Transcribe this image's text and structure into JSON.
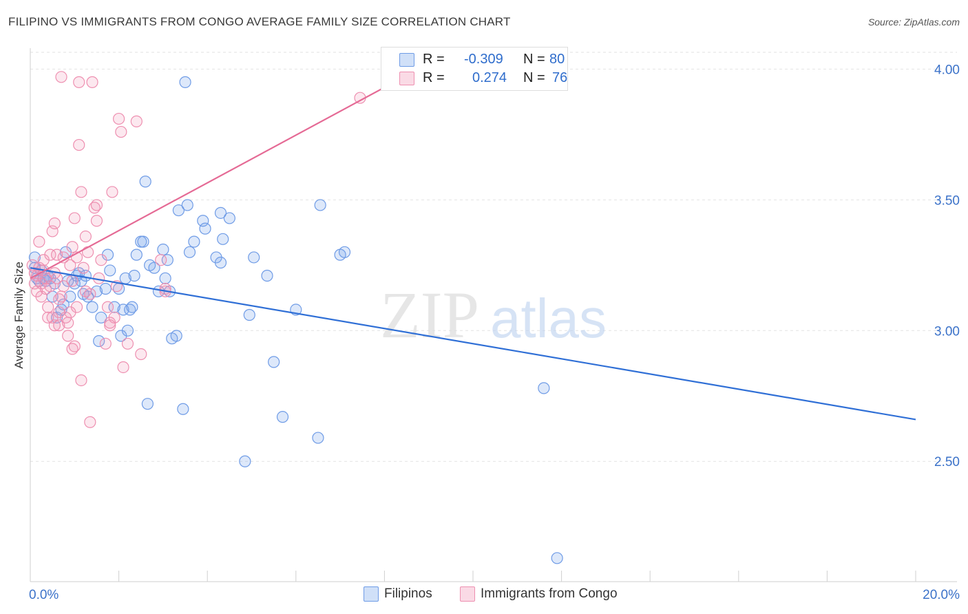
{
  "title": "FILIPINO VS IMMIGRANTS FROM CONGO AVERAGE FAMILY SIZE CORRELATION CHART",
  "source": "Source: ZipAtlas.com",
  "watermark": {
    "zip": "ZIP",
    "atlas": "atlas"
  },
  "colors": {
    "blue_fill": "rgba(120,165,235,0.25)",
    "blue_stroke": "#6e9be6",
    "blue_line": "#2f6fd6",
    "pink_fill": "rgba(240,150,180,0.22)",
    "pink_stroke": "#ee8fb0",
    "pink_line": "#e56a95",
    "axis_label": "#3b72c9",
    "grid": "#e2e2e2"
  },
  "legend": {
    "rows": [
      {
        "r_label": "R = ",
        "r_value": "-0.309",
        "n_label": "N = ",
        "n_value": "80"
      },
      {
        "r_label": "R = ",
        "r_value": "0.274",
        "n_label": "N = ",
        "n_value": "76"
      }
    ]
  },
  "bottom_legend": [
    "Filipinos",
    "Immigrants from Congo"
  ],
  "chart_data": {
    "type": "scatter",
    "title": "FILIPINO VS IMMIGRANTS FROM CONGO AVERAGE FAMILY SIZE CORRELATION CHART",
    "xlabel": "",
    "ylabel": "Average Family Size",
    "xlim": [
      0,
      20
    ],
    "ylim": [
      2.04,
      4.08
    ],
    "x_tick_labels": [
      "0.0%",
      "20.0%"
    ],
    "y_ticks": [
      2.5,
      3.0,
      3.5,
      4.0
    ],
    "y_tick_labels": [
      "2.50",
      "3.00",
      "3.50",
      "4.00"
    ],
    "grid": true,
    "legend_position": "top-center",
    "series": [
      {
        "name": "Filipinos",
        "r": -0.309,
        "n": 80,
        "trend": {
          "x": [
            0,
            20
          ],
          "y": [
            3.24,
            2.66
          ]
        },
        "points": [
          [
            0.1,
            3.28
          ],
          [
            0.1,
            3.24
          ],
          [
            0.15,
            3.2
          ],
          [
            0.2,
            3.19
          ],
          [
            0.25,
            3.23
          ],
          [
            0.3,
            3.2
          ],
          [
            0.35,
            3.19
          ],
          [
            0.4,
            3.21
          ],
          [
            0.45,
            3.2
          ],
          [
            0.5,
            3.13
          ],
          [
            0.55,
            3.18
          ],
          [
            0.6,
            3.05
          ],
          [
            0.7,
            3.08
          ],
          [
            0.75,
            3.1
          ],
          [
            0.8,
            3.3
          ],
          [
            0.85,
            3.19
          ],
          [
            0.9,
            3.13
          ],
          [
            1.0,
            3.18
          ],
          [
            1.05,
            3.21
          ],
          [
            1.1,
            3.22
          ],
          [
            1.15,
            3.19
          ],
          [
            1.2,
            3.14
          ],
          [
            1.25,
            3.21
          ],
          [
            1.3,
            3.13
          ],
          [
            1.4,
            3.09
          ],
          [
            1.5,
            3.15
          ],
          [
            1.55,
            2.96
          ],
          [
            1.6,
            3.05
          ],
          [
            1.7,
            3.16
          ],
          [
            1.75,
            3.29
          ],
          [
            1.8,
            3.23
          ],
          [
            1.9,
            3.09
          ],
          [
            2.0,
            3.16
          ],
          [
            2.05,
            2.98
          ],
          [
            2.1,
            3.08
          ],
          [
            2.15,
            3.2
          ],
          [
            2.2,
            3.0
          ],
          [
            2.25,
            3.08
          ],
          [
            2.3,
            3.09
          ],
          [
            2.35,
            3.21
          ],
          [
            2.4,
            3.29
          ],
          [
            2.5,
            3.34
          ],
          [
            2.55,
            3.34
          ],
          [
            2.6,
            3.57
          ],
          [
            2.65,
            2.72
          ],
          [
            2.7,
            3.25
          ],
          [
            2.8,
            3.24
          ],
          [
            2.9,
            3.15
          ],
          [
            3.0,
            3.31
          ],
          [
            3.05,
            3.2
          ],
          [
            3.1,
            3.27
          ],
          [
            3.15,
            3.15
          ],
          [
            3.2,
            2.97
          ],
          [
            3.3,
            2.98
          ],
          [
            3.35,
            3.46
          ],
          [
            3.45,
            2.7
          ],
          [
            3.5,
            3.95
          ],
          [
            3.55,
            3.48
          ],
          [
            3.6,
            3.3
          ],
          [
            3.7,
            3.34
          ],
          [
            3.9,
            3.42
          ],
          [
            3.95,
            3.39
          ],
          [
            4.2,
            3.28
          ],
          [
            4.3,
            3.45
          ],
          [
            4.35,
            3.35
          ],
          [
            4.3,
            3.26
          ],
          [
            4.5,
            3.43
          ],
          [
            4.85,
            2.5
          ],
          [
            4.95,
            3.06
          ],
          [
            5.05,
            3.28
          ],
          [
            5.35,
            3.21
          ],
          [
            5.5,
            2.88
          ],
          [
            5.7,
            2.67
          ],
          [
            6.0,
            3.08
          ],
          [
            6.5,
            2.59
          ],
          [
            6.55,
            3.48
          ],
          [
            7.0,
            3.29
          ],
          [
            7.1,
            3.3
          ],
          [
            11.6,
            2.78
          ],
          [
            11.9,
            2.13
          ]
        ]
      },
      {
        "name": "Immigrants from Congo",
        "r": 0.274,
        "n": 76,
        "trend": {
          "x": [
            0,
            8
          ],
          "y": [
            3.2,
            3.93
          ],
          "solid_until_x": 8.0,
          "dash_x": [
            8,
            9.3
          ]
        },
        "points": [
          [
            0.05,
            3.25
          ],
          [
            0.1,
            3.22
          ],
          [
            0.1,
            3.18
          ],
          [
            0.15,
            3.15
          ],
          [
            0.15,
            3.21
          ],
          [
            0.2,
            3.24
          ],
          [
            0.2,
            3.34
          ],
          [
            0.25,
            3.18
          ],
          [
            0.25,
            3.13
          ],
          [
            0.3,
            3.27
          ],
          [
            0.3,
            3.23
          ],
          [
            0.35,
            3.2
          ],
          [
            0.35,
            3.16
          ],
          [
            0.4,
            3.09
          ],
          [
            0.45,
            3.17
          ],
          [
            0.45,
            3.29
          ],
          [
            0.5,
            3.05
          ],
          [
            0.5,
            3.38
          ],
          [
            0.55,
            3.41
          ],
          [
            0.55,
            3.02
          ],
          [
            0.6,
            3.2
          ],
          [
            0.6,
            3.29
          ],
          [
            0.65,
            3.07
          ],
          [
            0.65,
            3.02
          ],
          [
            0.7,
            3.13
          ],
          [
            0.7,
            3.97
          ],
          [
            0.75,
            3.28
          ],
          [
            0.75,
            3.17
          ],
          [
            0.8,
            3.05
          ],
          [
            0.85,
            2.98
          ],
          [
            0.9,
            3.07
          ],
          [
            0.9,
            3.25
          ],
          [
            0.95,
            3.19
          ],
          [
            0.95,
            3.32
          ],
          [
            1.0,
            2.94
          ],
          [
            1.0,
            3.43
          ],
          [
            1.05,
            3.09
          ],
          [
            1.05,
            3.28
          ],
          [
            1.1,
            3.95
          ],
          [
            1.1,
            3.71
          ],
          [
            1.15,
            2.81
          ],
          [
            1.15,
            3.53
          ],
          [
            1.2,
            3.24
          ],
          [
            1.25,
            3.15
          ],
          [
            1.25,
            3.36
          ],
          [
            1.3,
            3.3
          ],
          [
            1.35,
            2.65
          ],
          [
            1.4,
            3.95
          ],
          [
            1.45,
            3.47
          ],
          [
            1.5,
            3.48
          ],
          [
            1.5,
            3.42
          ],
          [
            1.55,
            3.2
          ],
          [
            1.6,
            3.27
          ],
          [
            1.7,
            2.95
          ],
          [
            1.75,
            3.09
          ],
          [
            1.8,
            3.03
          ],
          [
            1.85,
            3.53
          ],
          [
            1.9,
            3.05
          ],
          [
            1.95,
            3.17
          ],
          [
            2.0,
            3.81
          ],
          [
            2.05,
            3.76
          ],
          [
            2.1,
            2.86
          ],
          [
            2.2,
            2.95
          ],
          [
            2.4,
            3.8
          ],
          [
            2.5,
            2.91
          ],
          [
            0.4,
            3.05
          ],
          [
            0.85,
            3.03
          ],
          [
            0.95,
            2.93
          ],
          [
            1.35,
            3.14
          ],
          [
            0.55,
            3.22
          ],
          [
            0.65,
            3.12
          ],
          [
            1.8,
            3.02
          ],
          [
            2.95,
            3.27
          ],
          [
            3.05,
            3.16
          ],
          [
            3.05,
            3.15
          ],
          [
            7.45,
            3.89
          ]
        ]
      }
    ]
  }
}
